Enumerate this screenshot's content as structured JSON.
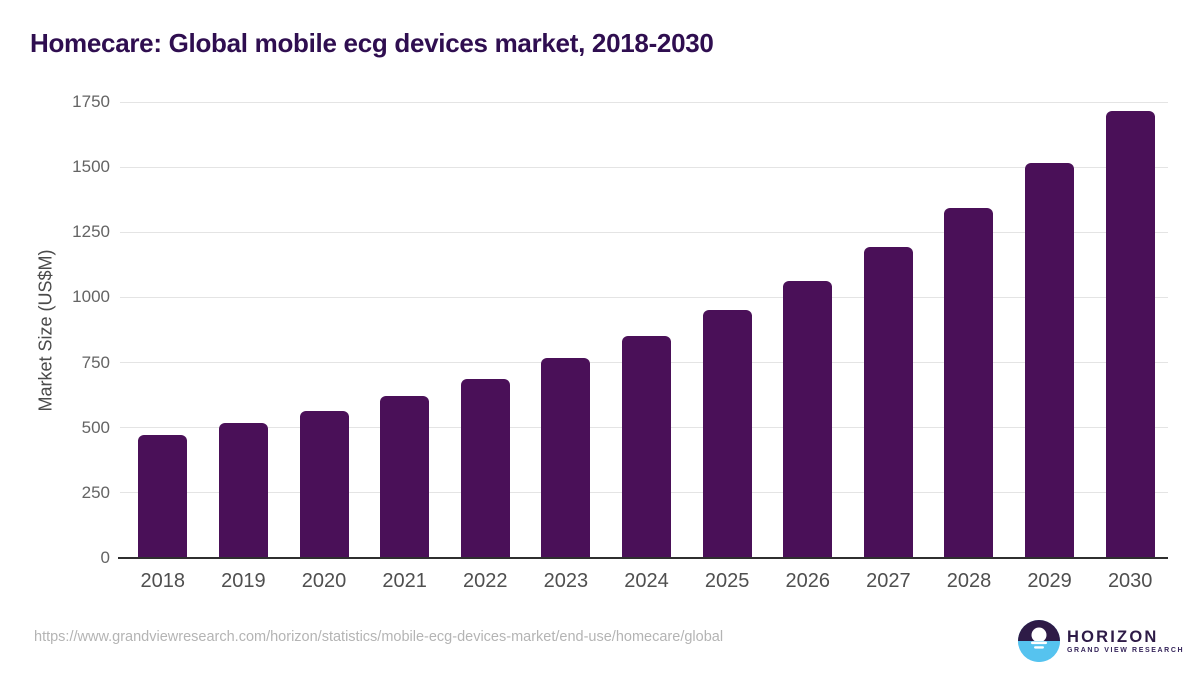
{
  "chart_data": {
    "type": "bar",
    "title": "Homecare: Global mobile ecg devices market, 2018-2030",
    "categories": [
      "2018",
      "2019",
      "2020",
      "2021",
      "2022",
      "2023",
      "2024",
      "2025",
      "2026",
      "2027",
      "2028",
      "2029",
      "2030"
    ],
    "values": [
      472,
      518,
      565,
      620,
      687,
      766,
      852,
      950,
      1062,
      1192,
      1342,
      1515,
      1716
    ],
    "xlabel": "",
    "ylabel": "Market Size (US$M)",
    "ylim": [
      0,
      1750
    ],
    "yticks": [
      0,
      250,
      500,
      750,
      1000,
      1250,
      1500,
      1750
    ],
    "grid": true,
    "legend": false,
    "bar_color": "#4a1058"
  },
  "colors": {
    "title_text": "#2f0e50",
    "bar_fill": "#4a1058",
    "axis_line": "#2f2f2f",
    "gridline": "#e4e4e4",
    "y_tick_text": "#646464",
    "x_tick_text": "#4f4f4f",
    "footer_text": "#b4b4b4",
    "logo_dark_purple": "#2e1b47",
    "logo_light_blue": "#56c3ef"
  },
  "footer": {
    "source_url": "https://www.grandviewresearch.com/horizon/statistics/mobile-ecg-devices-market/end-use/homecare/global",
    "logo": {
      "brand": "HORIZON",
      "tagline": "GRAND VIEW RESEARCH"
    }
  }
}
